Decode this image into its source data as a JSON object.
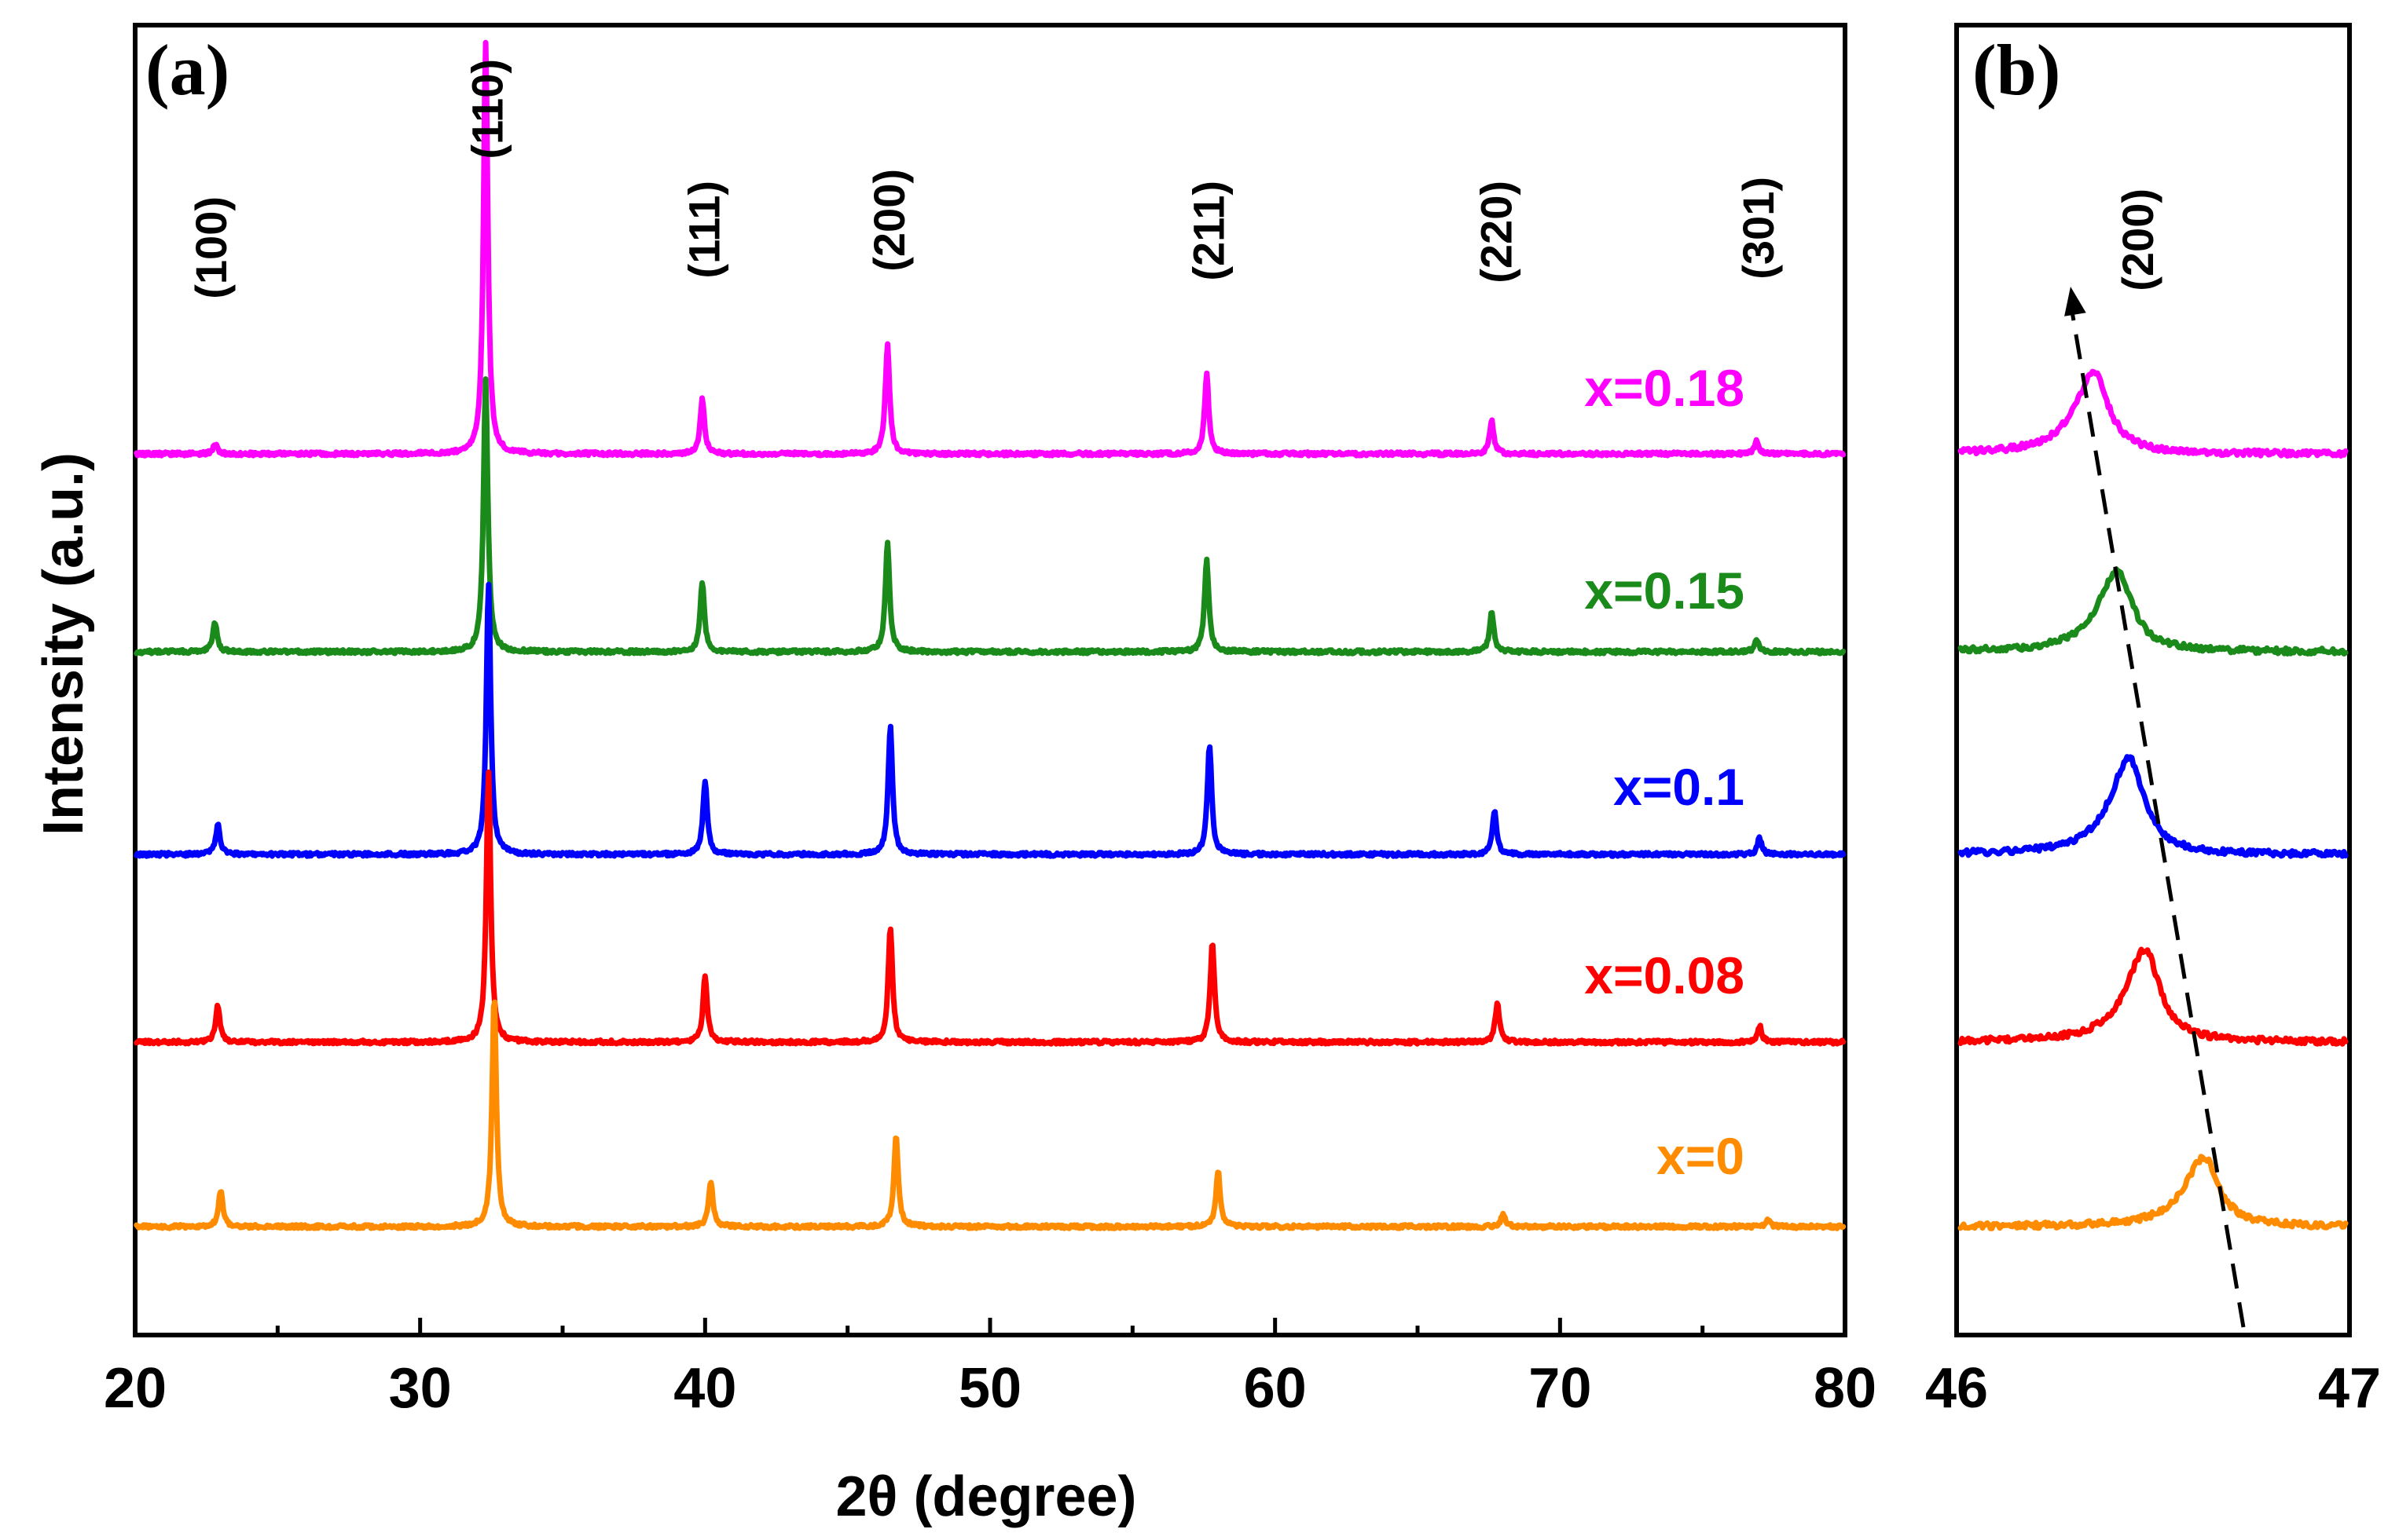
{
  "chart_data": [
    {
      "panel": "(a)",
      "type": "line",
      "xlabel": "2θ (degree)",
      "ylabel": "Intensity (a.u.)",
      "xlim": [
        20,
        80
      ],
      "xticks": [
        20,
        30,
        40,
        50,
        60,
        70,
        80
      ],
      "peak_labels": [
        {
          "text": "(100)",
          "x": 22.7
        },
        {
          "text": "(110)",
          "x": 32.4
        },
        {
          "text": "(111)",
          "x": 40.0
        },
        {
          "text": "(200)",
          "x": 46.5
        },
        {
          "text": "(211)",
          "x": 57.7
        },
        {
          "text": "(220)",
          "x": 67.8
        },
        {
          "text": "(301)",
          "x": 77.0
        }
      ],
      "series": [
        {
          "name": "x=0.18",
          "color": "#ff00ff",
          "offset": 4,
          "peaks": [
            {
              "x": 22.8,
              "h": 0.06
            },
            {
              "x": 32.3,
              "h": 2.5
            },
            {
              "x": 39.9,
              "h": 0.33
            },
            {
              "x": 46.4,
              "h": 0.66
            },
            {
              "x": 57.6,
              "h": 0.48
            },
            {
              "x": 67.6,
              "h": 0.2
            },
            {
              "x": 76.9,
              "h": 0.08
            }
          ]
        },
        {
          "name": "x=0.15",
          "color": "#1a8a1a",
          "offset": 3,
          "peaks": [
            {
              "x": 22.8,
              "h": 0.18
            },
            {
              "x": 32.3,
              "h": 1.65
            },
            {
              "x": 39.9,
              "h": 0.42
            },
            {
              "x": 46.4,
              "h": 0.66
            },
            {
              "x": 57.6,
              "h": 0.56
            },
            {
              "x": 67.6,
              "h": 0.24
            },
            {
              "x": 76.9,
              "h": 0.08
            }
          ]
        },
        {
          "name": "x=0.1",
          "color": "#0000ff",
          "offset": 2,
          "peaks": [
            {
              "x": 22.9,
              "h": 0.18
            },
            {
              "x": 32.4,
              "h": 1.65
            },
            {
              "x": 40.0,
              "h": 0.45
            },
            {
              "x": 46.5,
              "h": 0.78
            },
            {
              "x": 57.7,
              "h": 0.67
            },
            {
              "x": 67.7,
              "h": 0.26
            },
            {
              "x": 77.0,
              "h": 0.1
            }
          ]
        },
        {
          "name": "x=0.08",
          "color": "#ff0000",
          "offset": 1,
          "peaks": [
            {
              "x": 22.9,
              "h": 0.22
            },
            {
              "x": 32.4,
              "h": 1.65
            },
            {
              "x": 40.0,
              "h": 0.4
            },
            {
              "x": 46.5,
              "h": 0.7
            },
            {
              "x": 57.8,
              "h": 0.6
            },
            {
              "x": 67.8,
              "h": 0.24
            },
            {
              "x": 77.0,
              "h": 0.1
            }
          ]
        },
        {
          "name": "x=0",
          "color": "#ff8c00",
          "offset": 0,
          "peaks": [
            {
              "x": 23.0,
              "h": 0.22
            },
            {
              "x": 32.6,
              "h": 1.4
            },
            {
              "x": 40.2,
              "h": 0.28
            },
            {
              "x": 46.7,
              "h": 0.55
            },
            {
              "x": 58.0,
              "h": 0.34
            },
            {
              "x": 68.0,
              "h": 0.08
            },
            {
              "x": 77.3,
              "h": 0.04
            }
          ]
        }
      ]
    },
    {
      "panel": "(b)",
      "type": "line",
      "xlim": [
        46,
        47
      ],
      "xticks": [
        46,
        47
      ],
      "peak_label": "(200)",
      "series": [
        {
          "name": "x=0.18",
          "color": "#ff00ff",
          "offset": 4,
          "peak_x": 46.35,
          "h": 0.42
        },
        {
          "name": "x=0.15",
          "color": "#1a8a1a",
          "offset": 3,
          "peak_x": 46.41,
          "h": 0.42
        },
        {
          "name": "x=0.1",
          "color": "#0000ff",
          "offset": 2,
          "peak_x": 46.44,
          "h": 0.5
        },
        {
          "name": "x=0.08",
          "color": "#ff0000",
          "offset": 1,
          "peak_x": 46.48,
          "h": 0.48
        },
        {
          "name": "x=0",
          "color": "#ff8c00",
          "offset": 0,
          "peak_x": 46.63,
          "h": 0.36
        }
      ],
      "trend_arrow": {
        "from_x": 46.73,
        "to_x": 46.29,
        "style": "dashed"
      }
    }
  ]
}
